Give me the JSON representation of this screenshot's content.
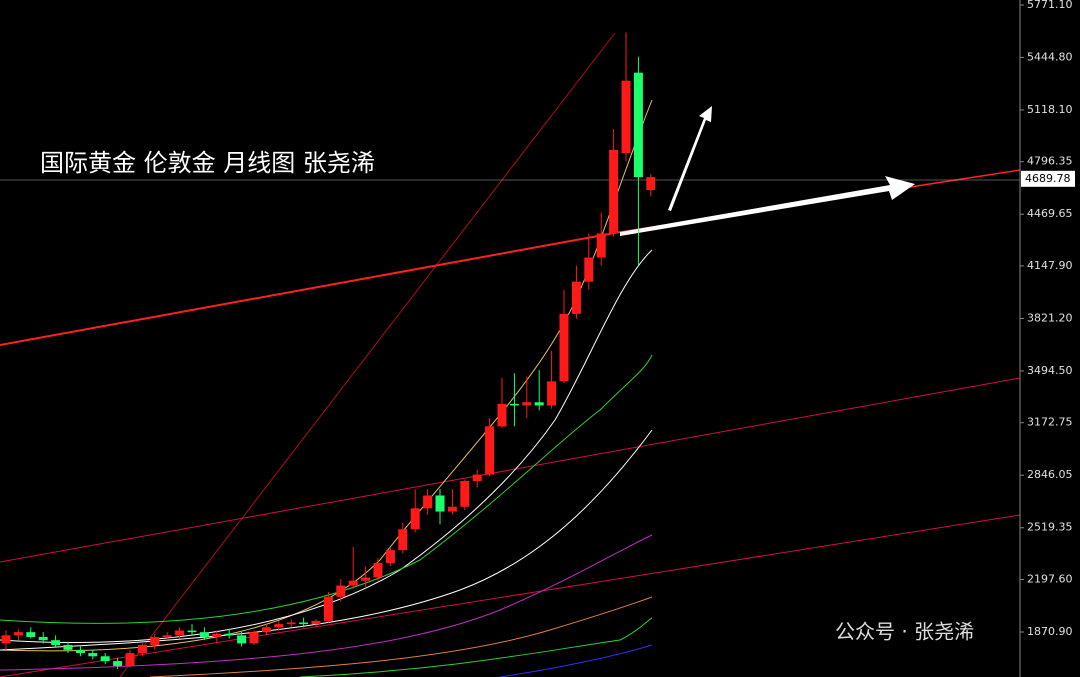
{
  "chart_data": {
    "type": "candlestick",
    "title": "国际黄金 伦敦金  月线图 张尧浠",
    "watermark": "公众号 · 张尧浠",
    "up_color": "#ff1a1a",
    "down_color": "#1aff6a",
    "open": [
      1800,
      1850,
      1870,
      1840,
      1820,
      1790,
      1760,
      1740,
      1720,
      1690,
      1660,
      1740,
      1790,
      1840,
      1850,
      1880,
      1870,
      1840,
      1860,
      1850,
      1800,
      1870,
      1900,
      1920,
      1930,
      1920,
      1940,
      2090,
      2160,
      2190,
      2210,
      2300,
      2380,
      2510,
      2640,
      2720,
      2620,
      2650,
      2810,
      2850,
      3150,
      3290,
      3280,
      3300,
      3280,
      3430,
      3850,
      4050,
      4200,
      4350,
      4850,
      5350,
      4620
    ],
    "high": [
      1880,
      1890,
      1900,
      1870,
      1850,
      1810,
      1790,
      1760,
      1740,
      1710,
      1760,
      1800,
      1860,
      1870,
      1900,
      1920,
      1900,
      1880,
      1890,
      1870,
      1880,
      1920,
      1940,
      1950,
      1960,
      1950,
      2120,
      2200,
      2400,
      2280,
      2330,
      2400,
      2550,
      2760,
      2760,
      2760,
      2760,
      2820,
      2880,
      3200,
      3450,
      3480,
      3460,
      3500,
      3620,
      4000,
      4150,
      4350,
      4480,
      5000,
      5600,
      5450,
      4720
    ],
    "low": [
      1760,
      1820,
      1830,
      1800,
      1780,
      1740,
      1720,
      1700,
      1670,
      1640,
      1650,
      1720,
      1760,
      1820,
      1830,
      1850,
      1820,
      1800,
      1830,
      1780,
      1790,
      1850,
      1880,
      1900,
      1900,
      1900,
      1930,
      2060,
      2140,
      2150,
      2190,
      2280,
      2360,
      2490,
      2600,
      2540,
      2600,
      2630,
      2770,
      2840,
      3140,
      3150,
      3200,
      3250,
      3260,
      3420,
      3820,
      4000,
      4150,
      4330,
      4800,
      4150,
      4580
    ],
    "close": [
      1850,
      1870,
      1840,
      1820,
      1790,
      1760,
      1740,
      1720,
      1690,
      1660,
      1740,
      1790,
      1840,
      1850,
      1880,
      1870,
      1840,
      1860,
      1850,
      1800,
      1870,
      1900,
      1920,
      1930,
      1920,
      1940,
      2090,
      2160,
      2190,
      2210,
      2300,
      2380,
      2510,
      2640,
      2720,
      2620,
      2650,
      2810,
      2850,
      3150,
      3290,
      3280,
      3300,
      3280,
      3430,
      3850,
      4050,
      4200,
      4350,
      4870,
      5300,
      4700,
      4700
    ],
    "last_price": 4689.78,
    "ylim": [
      1591,
      5802
    ],
    "yticks": [
      {
        "value": 5771.1,
        "label": "5771.10"
      },
      {
        "value": 5444.8,
        "label": "5444.80"
      },
      {
        "value": 5118.1,
        "label": "5118.10"
      },
      4796.35,
      4469.65,
      {
        "value": 4147.9,
        "label": "4147.90"
      },
      {
        "value": 3821.2,
        "label": "3821.20"
      },
      {
        "value": 3494.5,
        "label": "3494.50"
      },
      3172.75,
      2846.05,
      2519.35,
      {
        "value": 2197.6,
        "label": "2197.60"
      },
      {
        "value": 1870.9,
        "label": "1870.90"
      }
    ]
  }
}
